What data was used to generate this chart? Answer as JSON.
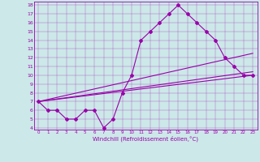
{
  "xlabel": "Windchill (Refroidissement éolien,°C)",
  "background_color": "#cce8e8",
  "line_color": "#9900aa",
  "xlim": [
    -0.5,
    23.5
  ],
  "ylim": [
    3.8,
    18.4
  ],
  "xticks": [
    0,
    1,
    2,
    3,
    4,
    5,
    6,
    7,
    8,
    9,
    10,
    11,
    12,
    13,
    14,
    15,
    16,
    17,
    18,
    19,
    20,
    21,
    22,
    23
  ],
  "yticks": [
    4,
    5,
    6,
    7,
    8,
    9,
    10,
    11,
    12,
    13,
    14,
    15,
    16,
    17,
    18
  ],
  "series": [
    [
      0,
      7
    ],
    [
      1,
      6
    ],
    [
      2,
      6
    ],
    [
      3,
      5
    ],
    [
      4,
      5
    ],
    [
      5,
      6
    ],
    [
      6,
      6
    ],
    [
      7,
      4
    ],
    [
      8,
      5
    ],
    [
      9,
      8
    ],
    [
      10,
      10
    ],
    [
      11,
      14
    ],
    [
      12,
      15
    ],
    [
      13,
      16
    ],
    [
      14,
      17
    ],
    [
      15,
      18
    ],
    [
      16,
      17
    ],
    [
      17,
      16
    ],
    [
      18,
      15
    ],
    [
      19,
      14
    ],
    [
      20,
      12
    ],
    [
      21,
      11
    ],
    [
      22,
      10
    ],
    [
      23,
      10
    ]
  ],
  "straight_lines": [
    [
      [
        0,
        7
      ],
      [
        23,
        10
      ]
    ],
    [
      [
        0,
        7
      ],
      [
        23,
        10.4
      ]
    ],
    [
      [
        0,
        7
      ],
      [
        23,
        12.5
      ]
    ]
  ]
}
